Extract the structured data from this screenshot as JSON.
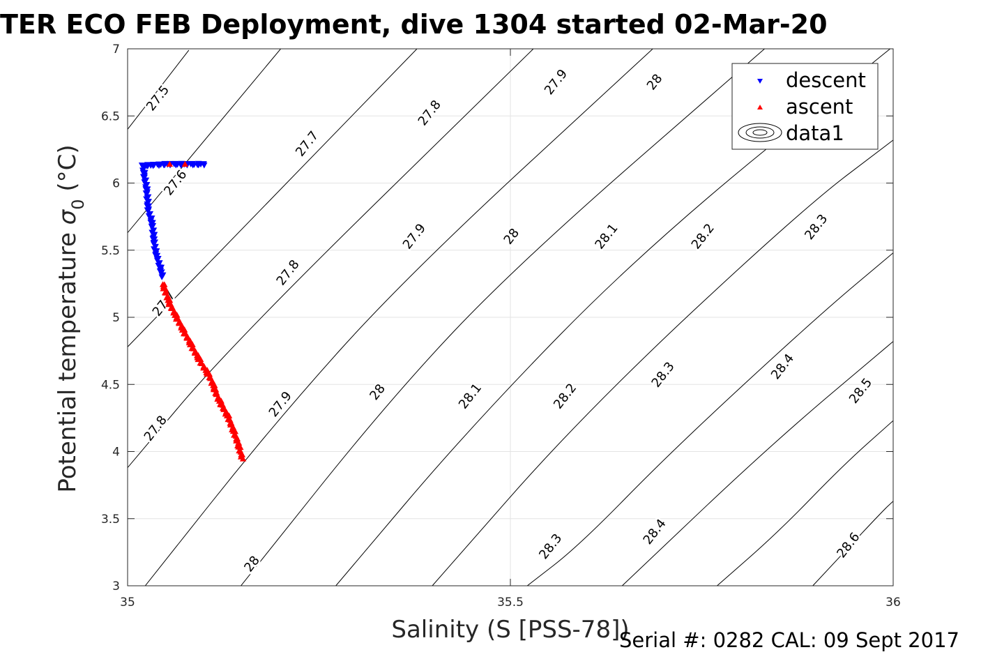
{
  "chart_data": {
    "type": "scatter",
    "title": "TER ECO FEB Deployment, dive 1304 started 02-Mar-20",
    "xlabel": "Salinity (S [PSS-78])",
    "ylabel_main": "Potential temperature ",
    "ylabel_symbol": "σ",
    "ylabel_sub": "0",
    "ylabel_unit": " (°C)",
    "footer": "Serial #: 0282  CAL: 09 Sept 2017",
    "xlim": [
      35,
      36
    ],
    "ylim": [
      3,
      7
    ],
    "x_ticks": [
      "35",
      "35.5",
      "36"
    ],
    "y_ticks": [
      "3",
      "3.5",
      "4",
      "4.5",
      "5",
      "5.5",
      "6",
      "6.5",
      "7"
    ],
    "grid": true,
    "legend": {
      "position": "top-right",
      "entries": [
        "descent",
        "ascent",
        "data1"
      ]
    },
    "contours": [
      {
        "level": "27.5",
        "lines": [
          [
            [
              35.0,
              6.4
            ],
            [
              35.08,
              6.99
            ]
          ]
        ]
      },
      {
        "level": "27.6",
        "lines": [
          [
            [
              35.0,
              5.63
            ],
            [
              35.2,
              7.0
            ]
          ]
        ]
      },
      {
        "level": "27.7",
        "lines": [
          [
            [
              35.0,
              4.78
            ],
            [
              35.378,
              7.0
            ]
          ]
        ]
      },
      {
        "level": "27.8",
        "lines": [
          [
            [
              35.0,
              3.88
            ],
            [
              35.136,
              4.8
            ],
            [
              35.53,
              7.0
            ]
          ]
        ]
      },
      {
        "level": "27.9",
        "lines": [
          [
            [
              35.023,
              3.0
            ],
            [
              35.19,
              4.2
            ],
            [
              35.363,
              5.3
            ],
            [
              35.686,
              7.0
            ]
          ]
        ]
      },
      {
        "level": "28",
        "lines": [
          [
            [
              35.148,
              3.0
            ],
            [
              35.344,
              4.4
            ],
            [
              35.51,
              5.4
            ],
            [
              35.832,
              7.0
            ]
          ]
        ]
      },
      {
        "level": "28.1",
        "lines": [
          [
            [
              35.272,
              3.0
            ],
            [
              35.45,
              4.2
            ],
            [
              35.68,
              5.54
            ],
            [
              35.996,
              7.0
            ]
          ]
        ]
      },
      {
        "level": "28.2",
        "lines": [
          [
            [
              35.398,
              3.0
            ],
            [
              35.595,
              4.28
            ],
            [
              35.88,
              5.8
            ],
            [
              36.0,
              6.32
            ]
          ]
        ]
      },
      {
        "level": "28.3",
        "lines": [
          [
            [
              35.522,
              3.0
            ],
            [
              35.59,
              3.3
            ],
            [
              35.71,
              4.0
            ],
            [
              35.9,
              5.0
            ],
            [
              36.0,
              5.48
            ]
          ]
        ]
      },
      {
        "level": "28.4",
        "lines": [
          [
            [
              35.646,
              3.0
            ],
            [
              35.84,
              4.05
            ],
            [
              36.0,
              4.82
            ]
          ]
        ]
      },
      {
        "level": "28.5",
        "lines": [
          [
            [
              35.77,
              3.0
            ],
            [
              35.85,
              3.4
            ],
            [
              35.935,
              3.9
            ],
            [
              36.0,
              4.23
            ]
          ]
        ]
      },
      {
        "level": "28.6",
        "lines": [
          [
            [
              35.895,
              3.0
            ],
            [
              35.985,
              3.55
            ],
            [
              36.0,
              3.63
            ]
          ]
        ]
      }
    ],
    "contour_labels": [
      {
        "text": "27.5",
        "x": 35.04,
        "y": 6.63
      },
      {
        "text": "27.6",
        "x": 35.063,
        "y": 6.0
      },
      {
        "text": "27.7",
        "x": 35.048,
        "y": 5.1
      },
      {
        "text": "27.8",
        "x": 35.037,
        "y": 4.17
      },
      {
        "text": "27.8",
        "x": 35.21,
        "y": 5.33
      },
      {
        "text": "27.8",
        "x": 35.395,
        "y": 6.52
      },
      {
        "text": "27.7",
        "x": 35.235,
        "y": 6.29
      },
      {
        "text": "27.9",
        "x": 35.2,
        "y": 4.35
      },
      {
        "text": "27.9",
        "x": 35.375,
        "y": 5.6
      },
      {
        "text": "27.9",
        "x": 35.56,
        "y": 6.75
      },
      {
        "text": "28",
        "x": 35.163,
        "y": 3.16
      },
      {
        "text": "28",
        "x": 35.327,
        "y": 4.44
      },
      {
        "text": "28",
        "x": 35.502,
        "y": 5.6
      },
      {
        "text": "28",
        "x": 35.689,
        "y": 6.75
      },
      {
        "text": "28.1",
        "x": 35.448,
        "y": 4.41
      },
      {
        "text": "28.1",
        "x": 35.626,
        "y": 5.6
      },
      {
        "text": "28.2",
        "x": 35.572,
        "y": 4.41
      },
      {
        "text": "28.2",
        "x": 35.752,
        "y": 5.6
      },
      {
        "text": "28.3",
        "x": 35.553,
        "y": 3.29
      },
      {
        "text": "28.3",
        "x": 35.7,
        "y": 4.57
      },
      {
        "text": "28.3",
        "x": 35.9,
        "y": 5.67
      },
      {
        "text": "28.4",
        "x": 35.689,
        "y": 3.4
      },
      {
        "text": "28.4",
        "x": 35.856,
        "y": 4.63
      },
      {
        "text": "28.5",
        "x": 35.958,
        "y": 4.45
      },
      {
        "text": "28.6",
        "x": 35.942,
        "y": 3.3
      }
    ],
    "series": [
      {
        "name": "descent",
        "marker": "triangle-down",
        "color": "#0000ff",
        "path": [
          [
            35.1,
            6.14
          ],
          [
            35.05,
            6.14
          ],
          [
            35.02,
            6.13
          ],
          [
            35.022,
            6.05
          ],
          [
            35.025,
            5.95
          ],
          [
            35.027,
            5.8
          ],
          [
            35.032,
            5.7
          ],
          [
            35.034,
            5.6
          ],
          [
            35.036,
            5.5
          ],
          [
            35.041,
            5.4
          ],
          [
            35.046,
            5.3
          ]
        ]
      },
      {
        "name": "ascent",
        "marker": "triangle-up",
        "color": "#ff0000",
        "path": [
          [
            35.046,
            5.25
          ],
          [
            35.055,
            5.1
          ],
          [
            35.073,
            4.9
          ],
          [
            35.092,
            4.7
          ],
          [
            35.108,
            4.55
          ],
          [
            35.118,
            4.4
          ],
          [
            35.132,
            4.25
          ],
          [
            35.142,
            4.1
          ],
          [
            35.15,
            3.95
          ]
        ],
        "extra_points": [
          [
            35.055,
            6.14
          ],
          [
            35.075,
            6.14
          ]
        ]
      }
    ]
  }
}
